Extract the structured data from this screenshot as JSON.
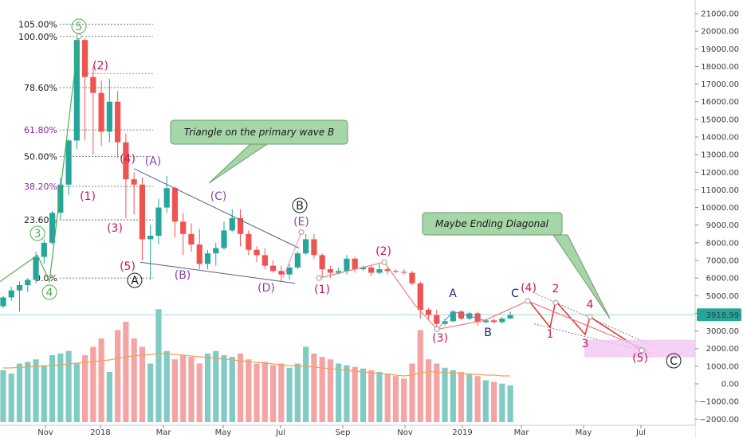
{
  "chart_data": {
    "type": "candlestick",
    "price_axis": {
      "ticks": [
        "21000.00",
        "20000.00",
        "19000.00",
        "18000.00",
        "17000.00",
        "16000.00",
        "15000.00",
        "14000.00",
        "13000.00",
        "12000.00",
        "11000.00",
        "10000.00",
        "9000.00",
        "8000.00",
        "7000.00",
        "6000.00",
        "5000.00",
        "4000.00",
        "3000.00",
        "2000.00",
        "1000.00",
        "0.00",
        "−1000.00",
        "−2000.00"
      ],
      "range": [
        -2000,
        21000
      ],
      "current_price": "3918.99"
    },
    "time_axis": {
      "labels": [
        "Nov",
        "2018",
        "Mar",
        "May",
        "Jul",
        "Sep",
        "Nov",
        "2019",
        "Mar",
        "May",
        "Jul"
      ]
    },
    "colors": {
      "up": "#26a69a",
      "down": "#ef5350",
      "up_volume": "#80cbc4",
      "down_volume": "#f4a4a2",
      "ma": "#f0a35a",
      "wave_green": "#4caf50",
      "wave_red": "#c2185b",
      "wave_purple": "#8e44ad",
      "wave_navy": "#1a237e",
      "fib_purple": "#8e24aa",
      "projection_box": "#f3c6f3"
    },
    "weekly_candles": [
      [
        4400,
        5000,
        4300,
        4900
      ],
      [
        4900,
        5500,
        4700,
        5300
      ],
      [
        5300,
        5800,
        4100,
        5600
      ],
      [
        5600,
        6000,
        5200,
        5900
      ],
      [
        5900,
        7500,
        5700,
        7200
      ],
      [
        7200,
        8200,
        6800,
        8000
      ],
      [
        8000,
        9800,
        7900,
        9700
      ],
      [
        9700,
        11700,
        9300,
        11300
      ],
      [
        11300,
        13900,
        10700,
        13800
      ],
      [
        13800,
        19700,
        13300,
        19500
      ],
      [
        19500,
        19600,
        13800,
        17400
      ],
      [
        17400,
        18000,
        13000,
        16500
      ],
      [
        16500,
        17200,
        13500,
        14300
      ],
      [
        14300,
        17300,
        13700,
        16000
      ],
      [
        16000,
        16600,
        12800,
        13700
      ],
      [
        13700,
        14200,
        9400,
        11600
      ],
      [
        11600,
        12000,
        9600,
        11300
      ],
      [
        11300,
        11700,
        7000,
        8200
      ],
      [
        8200,
        9000,
        5900,
        8400
      ],
      [
        8400,
        10500,
        7900,
        10000
      ],
      [
        10000,
        11800,
        9700,
        11100
      ],
      [
        11100,
        11200,
        8300,
        9200
      ],
      [
        9200,
        9700,
        7300,
        8500
      ],
      [
        8500,
        9100,
        7500,
        7900
      ],
      [
        7900,
        8800,
        6500,
        6800
      ],
      [
        6800,
        7600,
        6500,
        7400
      ],
      [
        7400,
        8000,
        6700,
        7700
      ],
      [
        7700,
        9200,
        7600,
        8700
      ],
      [
        8700,
        9900,
        8600,
        9400
      ],
      [
        9400,
        9900,
        7800,
        8500
      ],
      [
        8500,
        8700,
        7300,
        7600
      ],
      [
        7600,
        7800,
        6900,
        7300
      ],
      [
        7300,
        7700,
        6500,
        6700
      ],
      [
        6700,
        7000,
        6300,
        6400
      ],
      [
        6400,
        6700,
        5800,
        6200
      ],
      [
        6200,
        6800,
        5900,
        6600
      ],
      [
        6600,
        7500,
        6500,
        7400
      ],
      [
        7400,
        8500,
        7300,
        8200
      ],
      [
        8200,
        8500,
        7100,
        7300
      ],
      [
        7300,
        7400,
        6000,
        6500
      ],
      [
        6500,
        6700,
        6000,
        6300
      ],
      [
        6300,
        6600,
        6200,
        6400
      ],
      [
        6400,
        7300,
        6200,
        7100
      ],
      [
        7100,
        7200,
        6300,
        6500
      ],
      [
        6500,
        6700,
        6400,
        6600
      ],
      [
        6600,
        6700,
        6100,
        6300
      ],
      [
        6300,
        6800,
        6200,
        6500
      ],
      [
        6500,
        6600,
        6200,
        6400
      ],
      [
        6400,
        6500,
        6300,
        6350
      ],
      [
        6350,
        6500,
        6200,
        6300
      ],
      [
        6300,
        6400,
        5600,
        5700
      ],
      [
        5700,
        5800,
        3700,
        4200
      ],
      [
        4200,
        4300,
        3600,
        3900
      ],
      [
        3900,
        4200,
        3200,
        3400
      ],
      [
        3400,
        3700,
        3300,
        3550
      ],
      [
        3550,
        4200,
        3500,
        4100
      ],
      [
        4100,
        4200,
        3600,
        3700
      ],
      [
        3700,
        4100,
        3600,
        4000
      ],
      [
        4000,
        4100,
        3300,
        3500
      ],
      [
        3500,
        3700,
        3400,
        3600
      ],
      [
        3600,
        3700,
        3400,
        3500
      ],
      [
        3500,
        3800,
        3400,
        3700
      ],
      [
        3700,
        4100,
        3700,
        3900
      ]
    ],
    "volume": [
      62,
      58,
      70,
      72,
      75,
      68,
      80,
      82,
      85,
      70,
      80,
      90,
      100,
      60,
      110,
      120,
      100,
      90,
      70,
      135,
      85,
      75,
      80,
      78,
      70,
      82,
      85,
      80,
      78,
      82,
      75,
      70,
      72,
      68,
      70,
      65,
      70,
      90,
      82,
      78,
      75,
      70,
      68,
      66,
      64,
      62,
      60,
      58,
      55,
      52,
      70,
      110,
      75,
      70,
      65,
      62,
      60,
      58,
      55,
      50,
      48,
      46,
      44
    ],
    "ma_line": [
      68,
      68,
      69,
      69,
      70,
      70,
      71,
      72,
      73,
      74,
      75,
      76,
      77,
      78,
      80,
      82,
      83,
      84,
      85,
      86,
      86,
      85,
      84,
      83,
      82,
      81,
      80,
      79,
      78,
      77,
      76,
      75,
      74,
      73,
      72,
      71,
      70,
      70,
      69,
      68,
      67,
      66,
      65,
      64,
      63,
      62,
      61,
      60,
      59,
      58,
      59,
      62,
      63,
      63,
      62,
      62,
      61,
      60,
      60,
      59,
      59,
      58,
      58
    ],
    "fib_levels": [
      {
        "label": "105.00%",
        "price": 20400,
        "color": "#1a1a1a"
      },
      {
        "label": "100.00%",
        "price": 19700,
        "color": "#1a1a1a"
      },
      {
        "label": "78.60%",
        "price": 16800,
        "color": "#1a1a1a"
      },
      {
        "label": "61.80%",
        "price": 14400,
        "color": "#8e24aa"
      },
      {
        "label": "50.00%",
        "price": 12900,
        "color": "#1a1a1a"
      },
      {
        "label": "38.20%",
        "price": 11200,
        "color": "#8e24aa"
      },
      {
        "label": "23.60%",
        "price": 9300,
        "color": "#1a1a1a"
      },
      {
        "label": "0.0%",
        "price": 6000,
        "color": "#1a1a1a"
      }
    ],
    "wave_labels": [
      {
        "text": "3",
        "color": "#4caf50",
        "circle": true
      },
      {
        "text": "4",
        "color": "#4caf50",
        "circle": true
      },
      {
        "text": "5",
        "color": "#4caf50",
        "circle": true
      },
      {
        "text": "(1)",
        "color": "#c2185b"
      },
      {
        "text": "(2)",
        "color": "#c2185b"
      },
      {
        "text": "(3)",
        "color": "#c2185b"
      },
      {
        "text": "(4)",
        "color": "#c2185b"
      },
      {
        "text": "(5)",
        "color": "#c2185b"
      },
      {
        "text": "A",
        "color": "#1a1a1a",
        "circle": true
      },
      {
        "text": "(A)",
        "color": "#8e44ad"
      },
      {
        "text": "(B)",
        "color": "#8e44ad"
      },
      {
        "text": "(C)",
        "color": "#8e44ad"
      },
      {
        "text": "(D)",
        "color": "#8e44ad"
      },
      {
        "text": "(E)",
        "color": "#8e44ad"
      },
      {
        "text": "B",
        "color": "#1a1a1a",
        "circle": true
      },
      {
        "text": "(1)",
        "color": "#c2185b"
      },
      {
        "text": "(2)",
        "color": "#c2185b"
      },
      {
        "text": "(3)",
        "color": "#c2185b"
      },
      {
        "text": "A",
        "color": "#1a237e"
      },
      {
        "text": "B",
        "color": "#1a237e"
      },
      {
        "text": "C",
        "color": "#1a237e"
      },
      {
        "text": "(4)",
        "color": "#c2185b"
      },
      {
        "text": "1",
        "color": "#c2185b"
      },
      {
        "text": "2",
        "color": "#c2185b"
      },
      {
        "text": "3",
        "color": "#c2185b"
      },
      {
        "text": "4",
        "color": "#c2185b"
      },
      {
        "text": "(5)",
        "color": "#c2185b"
      },
      {
        "text": "C",
        "color": "#1a1a1a",
        "circle": true
      }
    ],
    "annotations": [
      "Triangle on the primary wave B",
      "Maybe Ending Diagonal"
    ]
  }
}
